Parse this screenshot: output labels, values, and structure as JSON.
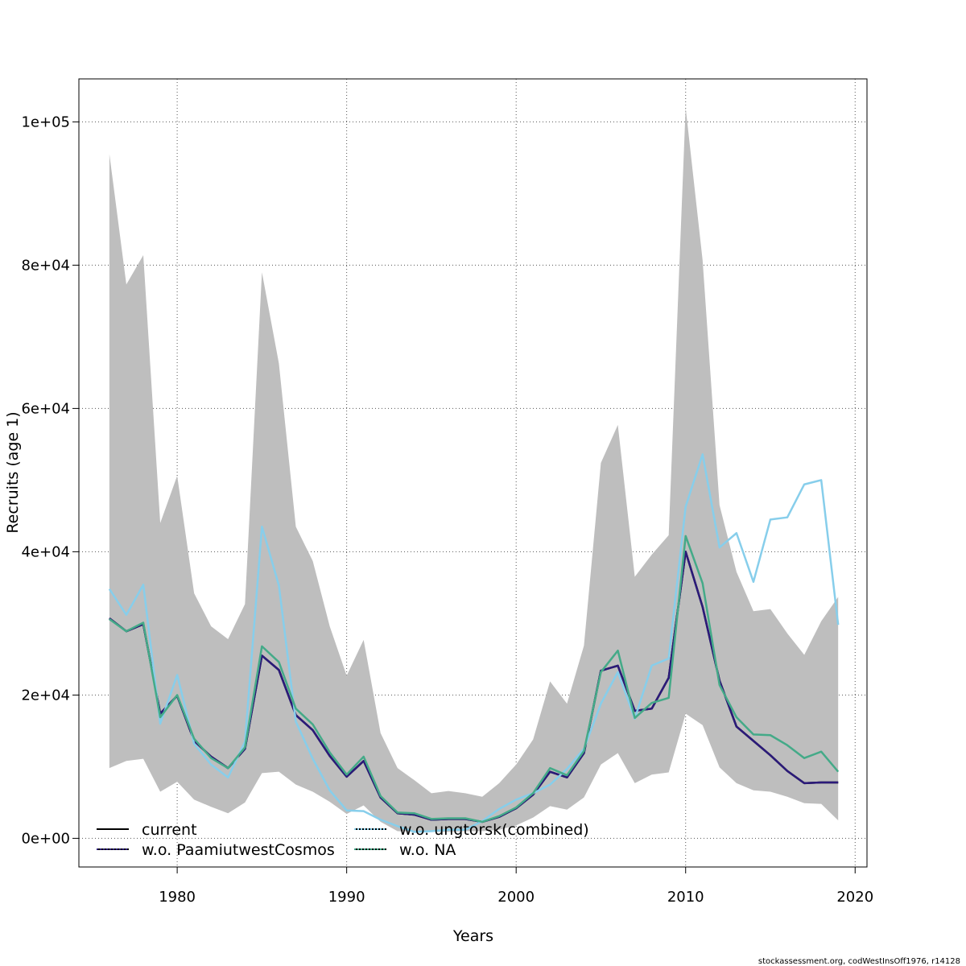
{
  "chart_data": {
    "type": "line",
    "title": "",
    "xlabel": "Years",
    "ylabel": "Recruits (age 1)",
    "xlim": [
      1974.2,
      2020.7
    ],
    "ylim": [
      -4000,
      106000
    ],
    "xticks": [
      1980,
      1990,
      2000,
      2010,
      2020
    ],
    "yticks": [
      0,
      20000,
      40000,
      60000,
      80000,
      100000
    ],
    "ytick_labels": [
      "0e+00",
      "2e+04",
      "4e+04",
      "6e+04",
      "8e+04",
      "1e+05"
    ],
    "grid": true,
    "legend_position": "bottom-left",
    "x": [
      1976,
      1977,
      1978,
      1979,
      1980,
      1981,
      1982,
      1983,
      1984,
      1985,
      1986,
      1987,
      1988,
      1989,
      1990,
      1991,
      1992,
      1993,
      1994,
      1995,
      1996,
      1997,
      1998,
      1999,
      2000,
      2001,
      2002,
      2003,
      2004,
      2005,
      2006,
      2007,
      2008,
      2009,
      2010,
      2011,
      2012,
      2013,
      2014,
      2015,
      2016,
      2017,
      2018,
      2019
    ],
    "band": {
      "upper": [
        95500,
        77300,
        81400,
        44000,
        50600,
        34200,
        29600,
        27800,
        32700,
        79000,
        66300,
        43500,
        38700,
        29600,
        22700,
        27700,
        14700,
        9800,
        8100,
        6300,
        6600,
        6300,
        5800,
        7700,
        10300,
        13800,
        21900,
        18800,
        26900,
        52400,
        57700,
        36500,
        39600,
        42300,
        102000,
        80700,
        46500,
        37200,
        31700,
        32000,
        28600,
        25600,
        30300,
        33700
      ],
      "lower": [
        9800,
        10800,
        11100,
        6500,
        7900,
        5400,
        4400,
        3500,
        5000,
        9100,
        9300,
        7500,
        6500,
        5100,
        3400,
        4600,
        2300,
        1000,
        900,
        900,
        900,
        1000,
        1000,
        1200,
        1800,
        2900,
        4500,
        4000,
        5700,
        10300,
        11900,
        7700,
        8900,
        9200,
        17400,
        15800,
        9900,
        7700,
        6700,
        6500,
        5800,
        4900,
        4800,
        2500
      ]
    },
    "series": [
      {
        "name": "current",
        "color": "#000000",
        "values": [
          30700,
          28900,
          29900,
          17400,
          19900,
          13600,
          11400,
          9800,
          12500,
          25500,
          23500,
          17200,
          15100,
          11500,
          8600,
          10800,
          5700,
          3500,
          3300,
          2600,
          2700,
          2700,
          2300,
          3000,
          4200,
          6100,
          9300,
          8500,
          11900,
          23400,
          24100,
          17800,
          18100,
          22400,
          40000,
          32300,
          22000,
          15600,
          13600,
          11600,
          9400,
          7700,
          7800,
          7800
        ]
      },
      {
        "name": "w.o. PaamiutwestCosmos",
        "color": "#2b1a7a",
        "values": [
          30700,
          28900,
          29900,
          17400,
          19900,
          13600,
          11400,
          9800,
          12500,
          25500,
          23500,
          17200,
          15100,
          11500,
          8600,
          10800,
          5700,
          3500,
          3300,
          2600,
          2700,
          2700,
          2300,
          3000,
          4200,
          6100,
          9300,
          8500,
          11900,
          23400,
          24100,
          17800,
          18100,
          22400,
          40000,
          32300,
          22000,
          15600,
          13600,
          11600,
          9400,
          7700,
          7800,
          7800
        ]
      },
      {
        "name": "w.o. ungtorsk(combined)",
        "color": "#87ceeb",
        "values": [
          34800,
          31200,
          35400,
          16000,
          22800,
          13200,
          10300,
          8500,
          13500,
          43500,
          35300,
          16300,
          11100,
          6700,
          3900,
          3800,
          2600,
          1700,
          900,
          1000,
          1200,
          1200,
          2400,
          4100,
          5400,
          6300,
          7500,
          9700,
          12500,
          18800,
          23200,
          16700,
          24100,
          25100,
          46300,
          53600,
          40600,
          42600,
          35800,
          44500,
          44800,
          49400,
          50000,
          29800
        ]
      },
      {
        "name": "w.o. NA",
        "color": "#44aa88",
        "values": [
          30600,
          28900,
          30100,
          16900,
          20000,
          13900,
          11200,
          9800,
          12700,
          26800,
          24600,
          18100,
          15900,
          12000,
          8900,
          11400,
          5900,
          3600,
          3500,
          2700,
          2800,
          2800,
          2300,
          3100,
          4300,
          6300,
          9800,
          8800,
          12200,
          23200,
          26200,
          16800,
          18900,
          19600,
          42200,
          35600,
          21400,
          16900,
          14500,
          14400,
          13000,
          11200,
          12100,
          9300
        ]
      }
    ]
  },
  "footer": "stockassessment.org, codWestInsOff1976, r14128"
}
